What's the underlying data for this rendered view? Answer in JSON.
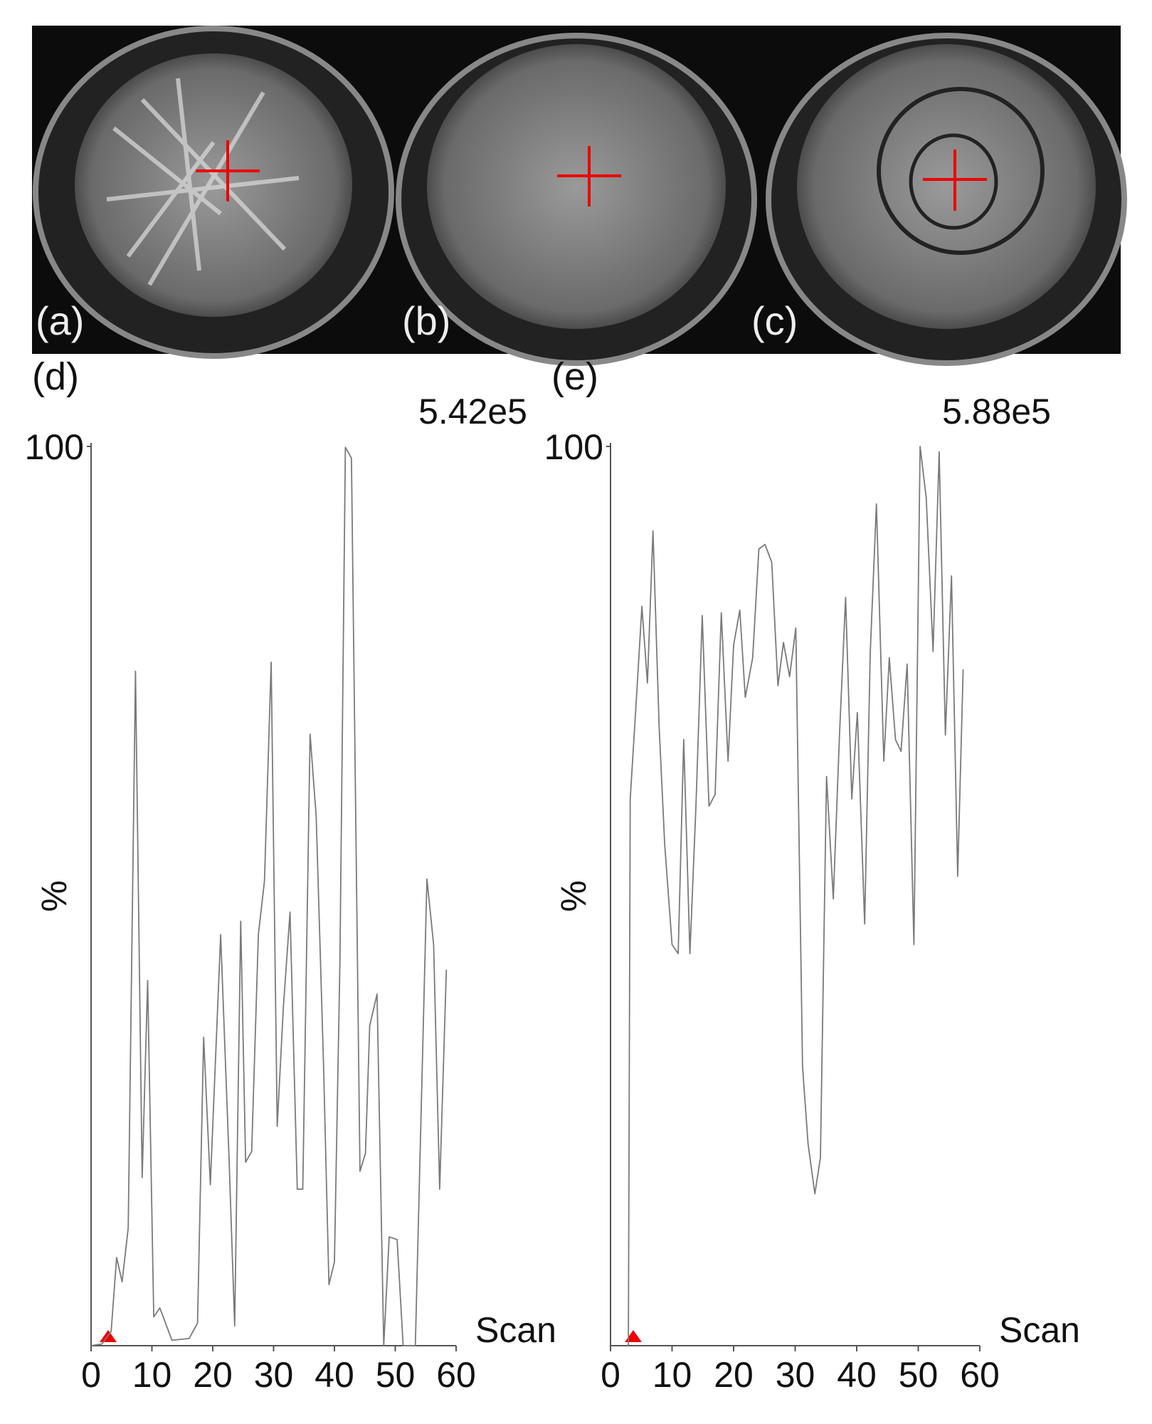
{
  "images": [
    {
      "label": "(a)"
    },
    {
      "label": "(b)"
    },
    {
      "label": "(c)"
    }
  ],
  "chart_data": [
    {
      "type": "line",
      "label": "(d)",
      "annotation": "5.42e5",
      "ylabel": "%",
      "xlabel": "Scan",
      "color": "#7a7a7a",
      "xlim": [
        0,
        60
      ],
      "xticks": [
        0,
        10,
        20,
        30,
        40,
        50,
        60
      ],
      "ylim": [
        0,
        100
      ],
      "yticks": [
        100
      ],
      "x": [
        0,
        1.8,
        3.3,
        4.2,
        5.1,
        6.1,
        7.3,
        8.4,
        9.3,
        10.3,
        11.3,
        13.3,
        16.1,
        17.5,
        18.5,
        19.6,
        21.3,
        22.7,
        23.6,
        24.6,
        25.4,
        26.4,
        27.5,
        28.5,
        29.6,
        30.6,
        31.6,
        32.7,
        33.9,
        34.8,
        36,
        37,
        38.2,
        39.1,
        40,
        40.9,
        41.8,
        42.8,
        44.2,
        45.1,
        45.8,
        47,
        48.1,
        49,
        50.3,
        51.3,
        53.3,
        55.2,
        56.3,
        57.3,
        58.4
      ],
      "values": [
        0,
        0.2,
        1.6,
        9.8,
        7.1,
        13.1,
        75,
        18.7,
        40.6,
        3.2,
        4.2,
        0.6,
        0.8,
        2.5,
        34.3,
        17.9,
        45.7,
        20.4,
        2.2,
        47.2,
        20.4,
        21.6,
        45.7,
        51.7,
        76,
        24.4,
        37.6,
        48.2,
        17.4,
        17.4,
        68,
        58.8,
        31.5,
        6.8,
        9.3,
        42.6,
        99.9,
        98.7,
        19.4,
        21.4,
        35.6,
        39.1,
        0,
        12.1,
        11.8,
        0,
        0,
        51.9,
        44.6,
        17.4,
        41.8
      ]
    },
    {
      "type": "line",
      "label": "(e)",
      "annotation": "5.88e5",
      "ylabel": "%",
      "xlabel": "Scan",
      "color": "#7a7a7a",
      "xlim": [
        0,
        60
      ],
      "xticks": [
        0,
        10,
        20,
        30,
        40,
        50,
        60
      ],
      "ylim": [
        0,
        100
      ],
      "yticks": [
        100
      ],
      "x": [
        2.9,
        3.2,
        4.3,
        5.1,
        6,
        6.9,
        7.9,
        8.8,
        10,
        11,
        11.9,
        12.9,
        13.9,
        14.9,
        16,
        17,
        18,
        19.1,
        20,
        21,
        21.9,
        23.1,
        24.1,
        25.1,
        26.2,
        27.2,
        28.1,
        29.1,
        30.1,
        31.2,
        32.1,
        33.2,
        34.1,
        35.1,
        36.2,
        37.2,
        38.2,
        39.2,
        40.1,
        41.3,
        42.2,
        43.2,
        44.4,
        45.3,
        46.3,
        47.2,
        48.2,
        49.3,
        50.3,
        51.3,
        52.4,
        53.4,
        54.4,
        55.4,
        56.4,
        57.3
      ],
      "values": [
        0,
        60.8,
        73,
        82.2,
        73.7,
        90.6,
        68.9,
        55.8,
        44.6,
        43.6,
        67.4,
        43.6,
        60.3,
        81.2,
        60,
        61.3,
        81.5,
        65,
        77.9,
        81.8,
        72.1,
        76.5,
        88.6,
        89.1,
        87.1,
        73.4,
        78.2,
        74.4,
        79.8,
        31,
        22.4,
        16.9,
        20.9,
        63.3,
        49.7,
        67.9,
        83.2,
        60.8,
        70.4,
        46.9,
        77,
        93.6,
        65,
        76.5,
        67.4,
        66.1,
        75.8,
        44.6,
        100,
        94.3,
        77.2,
        99.4,
        67.9,
        85.6,
        52.2,
        75.2
      ]
    }
  ]
}
